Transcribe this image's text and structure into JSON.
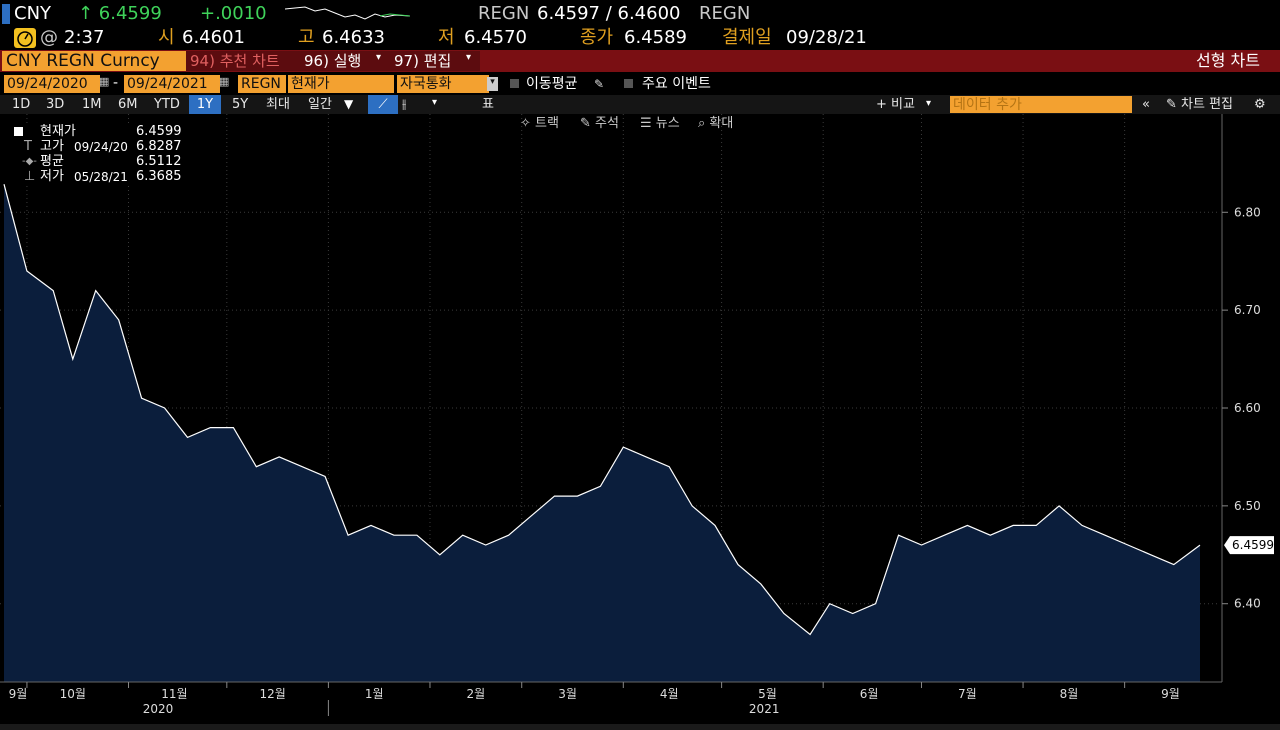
{
  "quote": {
    "ticker": "CNY",
    "last": "↑ 6.4599",
    "change": "+.0010",
    "source1": "REGN",
    "bid_ask": "6.4597 / 6.4600",
    "source2": "REGN",
    "time_prefix": "@",
    "time": "2:37",
    "open_label": "시",
    "open": "6.4601",
    "high_label": "고",
    "high": "6.4633",
    "low_label": "저",
    "low": "6.4570",
    "close_label": "종가",
    "close": "6.4589",
    "settle_label": "결제일",
    "settle_date": "09/28/21"
  },
  "toolbar": {
    "security": "CNY REGN Curncy",
    "menu94": "94) 추천 차트",
    "menu96": "96) 실행",
    "menu97": "97) 편집",
    "chart_type": "선형 차트"
  },
  "controls": {
    "start_date": "09/24/2020",
    "date_sep": "-",
    "end_date": "09/24/2021",
    "source": "REGN",
    "field": "현재가",
    "currency": "자국통화",
    "moving_avg": "이동평균",
    "key_events": "주요 이벤트"
  },
  "ranges": [
    "1D",
    "3D",
    "1M",
    "6M",
    "YTD",
    "1Y",
    "5Y",
    "최대"
  ],
  "active_range": "1Y",
  "period": "일간",
  "table_label": "표",
  "compare_label": "+ 비교",
  "data_add_placeholder": "데이터 추가",
  "chart_edit_label": "차트 편집",
  "chart_tools": [
    "트랙",
    "주석",
    "뉴스",
    "확대"
  ],
  "legend": [
    {
      "label": "현재가",
      "date": "",
      "value": "6.4599"
    },
    {
      "label": "고가",
      "date": "09/24/20",
      "value": "6.8287"
    },
    {
      "label": "평균",
      "date": "",
      "value": "6.5112"
    },
    {
      "label": "저가",
      "date": "05/28/21",
      "value": "6.3685"
    }
  ],
  "colors": {
    "area_fill": "#0b1e3c",
    "line": "#ffffff",
    "accent_orange": "#f3a130",
    "bar_red": "#7a0f13",
    "up_green": "#3fd35a"
  },
  "chart_data": {
    "type": "area",
    "ylim": [
      6.32,
      6.88
    ],
    "y_ticks": [
      "6.40",
      "6.50",
      "6.60",
      "6.70",
      "6.80"
    ],
    "last_value_label": "6.4599",
    "x_month_labels": [
      "9월",
      "10월",
      "11월",
      "12월",
      "1월",
      "2월",
      "3월",
      "4월",
      "5월",
      "6월",
      "7월",
      "8월",
      "9월"
    ],
    "year_labels": [
      "2020",
      "2021"
    ],
    "x": [
      "2020-09-24",
      "2020-10-01",
      "2020-10-09",
      "2020-10-15",
      "2020-10-22",
      "2020-10-29",
      "2020-11-05",
      "2020-11-12",
      "2020-11-19",
      "2020-11-26",
      "2020-12-03",
      "2020-12-10",
      "2020-12-17",
      "2020-12-24",
      "2020-12-31",
      "2021-01-07",
      "2021-01-14",
      "2021-01-21",
      "2021-01-28",
      "2021-02-04",
      "2021-02-11",
      "2021-02-18",
      "2021-02-25",
      "2021-03-04",
      "2021-03-11",
      "2021-03-18",
      "2021-03-25",
      "2021-04-01",
      "2021-04-08",
      "2021-04-15",
      "2021-04-22",
      "2021-04-29",
      "2021-05-06",
      "2021-05-13",
      "2021-05-20",
      "2021-05-28",
      "2021-06-03",
      "2021-06-10",
      "2021-06-17",
      "2021-06-24",
      "2021-07-01",
      "2021-07-08",
      "2021-07-15",
      "2021-07-22",
      "2021-07-29",
      "2021-08-05",
      "2021-08-12",
      "2021-08-19",
      "2021-08-26",
      "2021-09-02",
      "2021-09-09",
      "2021-09-16",
      "2021-09-24"
    ],
    "values": [
      6.8287,
      6.74,
      6.72,
      6.65,
      6.72,
      6.69,
      6.61,
      6.6,
      6.57,
      6.58,
      6.58,
      6.54,
      6.55,
      6.54,
      6.53,
      6.47,
      6.48,
      6.47,
      6.47,
      6.45,
      6.47,
      6.46,
      6.47,
      6.49,
      6.51,
      6.51,
      6.52,
      6.56,
      6.55,
      6.54,
      6.5,
      6.48,
      6.44,
      6.42,
      6.39,
      6.3685,
      6.4,
      6.39,
      6.4,
      6.47,
      6.46,
      6.47,
      6.48,
      6.47,
      6.48,
      6.48,
      6.5,
      6.48,
      6.47,
      6.46,
      6.45,
      6.44,
      6.4599
    ]
  }
}
